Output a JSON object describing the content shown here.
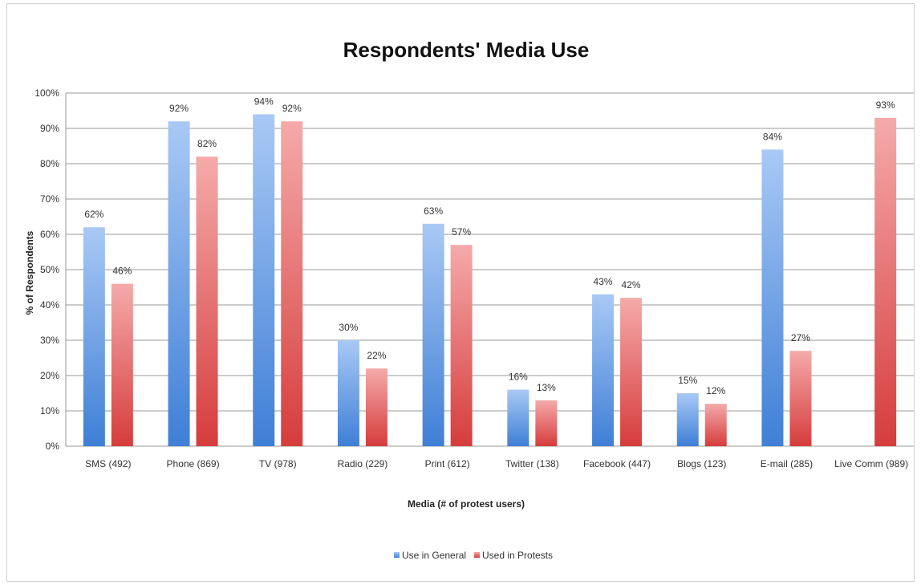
{
  "chart_data": {
    "type": "bar",
    "title": "Respondents' Media Use",
    "xlabel": "Media (# of protest users)",
    "ylabel": "% of Respondents",
    "ylim": [
      0,
      100
    ],
    "yticks": [
      "0%",
      "10%",
      "20%",
      "30%",
      "40%",
      "50%",
      "60%",
      "70%",
      "80%",
      "90%",
      "100%"
    ],
    "grid": true,
    "legend_position": "bottom",
    "categories": [
      "SMS (492)",
      "Phone (869)",
      "TV (978)",
      "Radio (229)",
      "Print (612)",
      "Twitter (138)",
      "Facebook (447)",
      "Blogs (123)",
      "E-mail (285)",
      "Live Comm (989)"
    ],
    "series": [
      {
        "name": "Use in General",
        "color": "#4a86d8",
        "values": [
          62,
          92,
          94,
          30,
          63,
          16,
          43,
          15,
          84,
          null
        ],
        "labels": [
          "62%",
          "92%",
          "94%",
          "30%",
          "63%",
          "16%",
          "43%",
          "15%",
          "84%",
          ""
        ]
      },
      {
        "name": "Used in Protests",
        "color": "#e05050",
        "values": [
          46,
          82,
          92,
          22,
          57,
          13,
          42,
          12,
          27,
          93
        ],
        "labels": [
          "46%",
          "82%",
          "92%",
          "22%",
          "57%",
          "13%",
          "42%",
          "12%",
          "27%",
          "93%"
        ]
      }
    ]
  }
}
